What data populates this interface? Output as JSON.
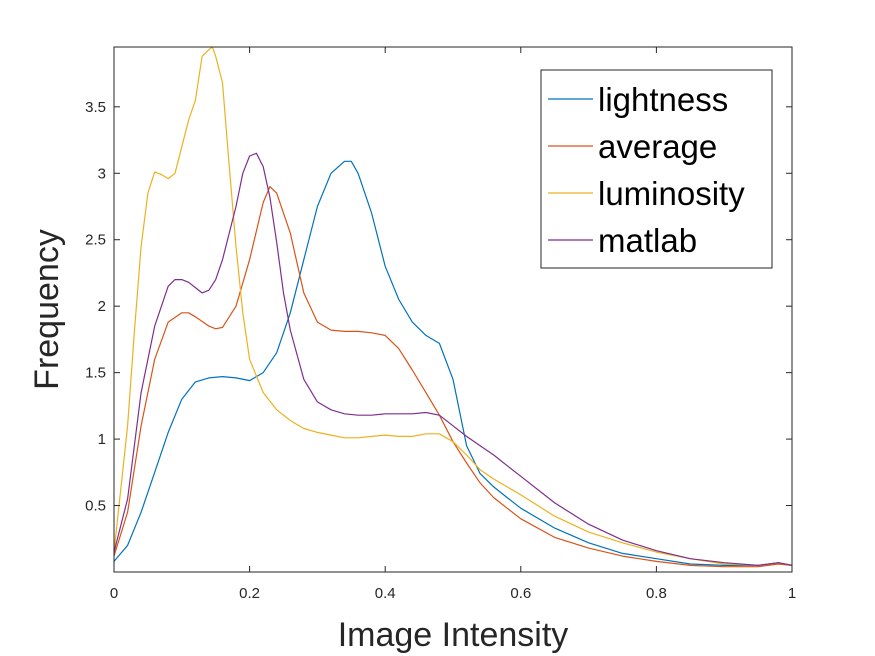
{
  "chart_data": {
    "type": "line",
    "title": "",
    "xlabel": "Image Intensity",
    "ylabel": "Frequency",
    "xlim": [
      0,
      1
    ],
    "ylim": [
      0,
      3.95
    ],
    "xticks": [
      0,
      0.2,
      0.4,
      0.6,
      0.8,
      1
    ],
    "xtick_labels": [
      "0",
      "0.2",
      "0.4",
      "0.6",
      "0.8",
      "1"
    ],
    "yticks": [
      0.5,
      1,
      1.5,
      2,
      2.5,
      3,
      3.5
    ],
    "ytick_labels": [
      "0.5",
      "1",
      "1.5",
      "2",
      "2.5",
      "3",
      "3.5"
    ],
    "grid": false,
    "legend_position": "top-right",
    "series": [
      {
        "name": "lightness",
        "color": "#0072BD",
        "x": [
          0,
          0.02,
          0.04,
          0.06,
          0.08,
          0.1,
          0.12,
          0.14,
          0.16,
          0.18,
          0.2,
          0.22,
          0.24,
          0.26,
          0.28,
          0.3,
          0.32,
          0.34,
          0.35,
          0.36,
          0.38,
          0.4,
          0.42,
          0.44,
          0.46,
          0.48,
          0.5,
          0.52,
          0.54,
          0.56,
          0.58,
          0.6,
          0.65,
          0.7,
          0.75,
          0.8,
          0.85,
          0.9,
          0.95,
          0.98,
          1
        ],
        "y": [
          0.08,
          0.2,
          0.45,
          0.75,
          1.05,
          1.3,
          1.43,
          1.46,
          1.47,
          1.46,
          1.44,
          1.5,
          1.65,
          1.95,
          2.35,
          2.75,
          3.0,
          3.09,
          3.09,
          3.0,
          2.7,
          2.3,
          2.05,
          1.88,
          1.78,
          1.72,
          1.45,
          0.95,
          0.74,
          0.64,
          0.56,
          0.48,
          0.33,
          0.22,
          0.14,
          0.1,
          0.06,
          0.05,
          0.05,
          0.07,
          0.05
        ]
      },
      {
        "name": "average",
        "color": "#D95319",
        "x": [
          0,
          0.02,
          0.04,
          0.06,
          0.08,
          0.1,
          0.11,
          0.12,
          0.14,
          0.15,
          0.16,
          0.18,
          0.2,
          0.22,
          0.23,
          0.24,
          0.26,
          0.28,
          0.3,
          0.32,
          0.34,
          0.36,
          0.38,
          0.4,
          0.42,
          0.44,
          0.46,
          0.48,
          0.5,
          0.52,
          0.54,
          0.56,
          0.58,
          0.6,
          0.65,
          0.7,
          0.75,
          0.8,
          0.85,
          0.9,
          0.95,
          0.98,
          1
        ],
        "y": [
          0.12,
          0.45,
          1.1,
          1.6,
          1.88,
          1.95,
          1.95,
          1.92,
          1.85,
          1.83,
          1.84,
          2.0,
          2.35,
          2.78,
          2.9,
          2.85,
          2.55,
          2.1,
          1.88,
          1.82,
          1.81,
          1.81,
          1.8,
          1.78,
          1.68,
          1.52,
          1.35,
          1.18,
          0.98,
          0.82,
          0.67,
          0.56,
          0.48,
          0.4,
          0.26,
          0.18,
          0.12,
          0.08,
          0.05,
          0.04,
          0.04,
          0.06,
          0.05
        ]
      },
      {
        "name": "luminosity",
        "color": "#EDB120",
        "x": [
          0,
          0.02,
          0.03,
          0.04,
          0.05,
          0.06,
          0.07,
          0.08,
          0.09,
          0.1,
          0.11,
          0.12,
          0.13,
          0.14,
          0.145,
          0.15,
          0.16,
          0.17,
          0.18,
          0.19,
          0.2,
          0.22,
          0.24,
          0.26,
          0.28,
          0.3,
          0.32,
          0.34,
          0.36,
          0.38,
          0.4,
          0.42,
          0.44,
          0.46,
          0.48,
          0.5,
          0.52,
          0.54,
          0.56,
          0.58,
          0.6,
          0.65,
          0.7,
          0.75,
          0.8,
          0.85,
          0.9,
          0.95,
          0.98,
          1
        ],
        "y": [
          0.15,
          1.1,
          1.8,
          2.45,
          2.85,
          3.01,
          2.99,
          2.96,
          3.0,
          3.2,
          3.4,
          3.55,
          3.88,
          3.93,
          3.95,
          3.88,
          3.68,
          3.05,
          2.45,
          1.95,
          1.6,
          1.35,
          1.22,
          1.14,
          1.08,
          1.05,
          1.03,
          1.01,
          1.01,
          1.02,
          1.03,
          1.02,
          1.02,
          1.04,
          1.04,
          0.98,
          0.88,
          0.77,
          0.7,
          0.64,
          0.58,
          0.42,
          0.3,
          0.22,
          0.15,
          0.1,
          0.06,
          0.05,
          0.07,
          0.05
        ]
      },
      {
        "name": "matlab",
        "color": "#7E2F8E",
        "x": [
          0,
          0.02,
          0.04,
          0.06,
          0.08,
          0.09,
          0.1,
          0.11,
          0.12,
          0.13,
          0.14,
          0.15,
          0.16,
          0.18,
          0.19,
          0.2,
          0.21,
          0.22,
          0.23,
          0.24,
          0.25,
          0.26,
          0.28,
          0.3,
          0.32,
          0.34,
          0.36,
          0.38,
          0.4,
          0.42,
          0.44,
          0.46,
          0.48,
          0.5,
          0.52,
          0.54,
          0.56,
          0.58,
          0.6,
          0.65,
          0.7,
          0.75,
          0.8,
          0.85,
          0.9,
          0.95,
          0.98,
          1
        ],
        "y": [
          0.15,
          0.55,
          1.35,
          1.85,
          2.15,
          2.2,
          2.2,
          2.18,
          2.14,
          2.1,
          2.12,
          2.2,
          2.35,
          2.75,
          3.0,
          3.13,
          3.15,
          3.05,
          2.82,
          2.48,
          2.1,
          1.82,
          1.45,
          1.28,
          1.22,
          1.19,
          1.18,
          1.18,
          1.19,
          1.19,
          1.19,
          1.2,
          1.18,
          1.1,
          1.02,
          0.95,
          0.88,
          0.8,
          0.72,
          0.52,
          0.36,
          0.24,
          0.16,
          0.1,
          0.07,
          0.05,
          0.07,
          0.05
        ]
      }
    ]
  }
}
